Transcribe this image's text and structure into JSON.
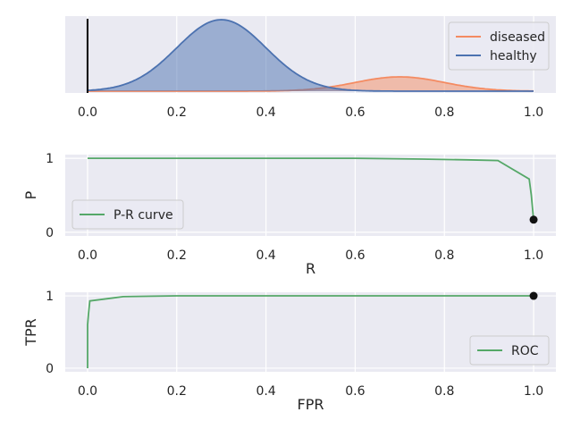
{
  "chart_data": [
    {
      "type": "area",
      "title": "",
      "xlabel": "",
      "ylabel": "",
      "xlim": [
        -0.05,
        1.05
      ],
      "xticks": [
        "0.0",
        "0.2",
        "0.4",
        "0.6",
        "0.8",
        "1.0"
      ],
      "yticks": [],
      "grid": true,
      "legend_position": "top-right",
      "threshold_line_x": 0.0,
      "series": [
        {
          "name": "diseased",
          "distribution": "normal",
          "mean": 0.7,
          "sd": 0.1,
          "relative_peak": 0.2,
          "color": "#f48b62"
        },
        {
          "name": "healthy",
          "distribution": "normal",
          "mean": 0.3,
          "sd": 0.1,
          "relative_peak": 1.0,
          "color": "#4c72b0"
        }
      ]
    },
    {
      "type": "line",
      "title": "",
      "xlabel": "R",
      "ylabel": "P",
      "xlim": [
        -0.05,
        1.05
      ],
      "ylim": [
        -0.05,
        1.05
      ],
      "xticks": [
        "0.0",
        "0.2",
        "0.4",
        "0.6",
        "0.8",
        "1.0"
      ],
      "yticks": [
        "0",
        "1"
      ],
      "grid": true,
      "legend_position": "bottom-left",
      "series": [
        {
          "name": "P-R curve",
          "color": "#55a868",
          "x": [
            0.0,
            0.3,
            0.6,
            0.75,
            0.85,
            0.92,
            0.99,
            0.995,
            1.0
          ],
          "y": [
            1.0,
            1.0,
            1.0,
            0.99,
            0.98,
            0.97,
            0.72,
            0.5,
            0.17
          ]
        }
      ],
      "marker": {
        "x": 1.0,
        "y": 0.17
      }
    },
    {
      "type": "line",
      "title": "",
      "xlabel": "FPR",
      "ylabel": "TPR",
      "xlim": [
        -0.05,
        1.05
      ],
      "ylim": [
        -0.05,
        1.05
      ],
      "xticks": [
        "0.0",
        "0.2",
        "0.4",
        "0.6",
        "0.8",
        "1.0"
      ],
      "yticks": [
        "0",
        "1"
      ],
      "grid": true,
      "legend_position": "bottom-right",
      "series": [
        {
          "name": "ROC",
          "color": "#55a868",
          "x": [
            0.0,
            0.0,
            0.002,
            0.005,
            0.08,
            0.2,
            0.5,
            1.0
          ],
          "y": [
            0.0,
            0.6,
            0.75,
            0.93,
            0.99,
            1.0,
            1.0,
            1.0
          ]
        }
      ],
      "marker": {
        "x": 1.0,
        "y": 1.0
      }
    }
  ]
}
